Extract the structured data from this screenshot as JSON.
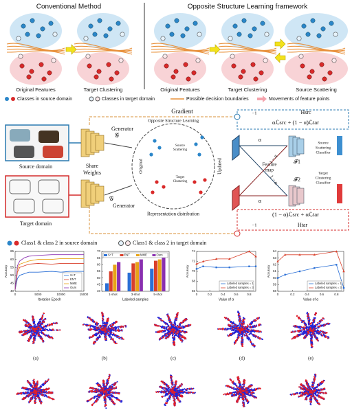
{
  "top": {
    "left_title": "Conventional  Method",
    "right_title": "Opposite Structure Learning framework",
    "labels": [
      "Original Features",
      "Target Clustering",
      "Original Features",
      "Target Clustering",
      "Source Scattering"
    ],
    "legend": [
      "Classes in source domain",
      "Classes in target domain",
      "Possible decision boundaries",
      "Movements of feature points"
    ]
  },
  "diagram": {
    "gradient_top": "Gradient",
    "source_domain": "Source domain",
    "target_domain": "Target domain",
    "share_weights": [
      "Share",
      "Weights"
    ],
    "generator_top": "Generator",
    "generator_bottom": "Generator",
    "g_symbol_top": "𝒢",
    "g_symbol_bottom": "𝒢",
    "osl_title": "Opposite Structure Learning",
    "original": "Original",
    "source_scattering": [
      "Source",
      "Scattering"
    ],
    "target_clustering": [
      "Target",
      "Clustering"
    ],
    "updated": "Updated",
    "representation": "Representation distribution",
    "feature_map": [
      "Feature",
      "map"
    ],
    "alpha_top": "α",
    "alpha_bottom": "α",
    "one_minus_alpha_top": "1 − α",
    "one_minus_alpha_bottom": "1 − α",
    "f1": "𝓕1",
    "f2": "𝓕2",
    "src_classifier": [
      "Source",
      "Scattering",
      "Classifier"
    ],
    "tar_classifier": [
      "Target",
      "Clustering",
      "Classifier"
    ],
    "h_src": "Hsrc",
    "formula_src": "αℒsrc + (1 − α)ℒtar",
    "minus_one_top": "−1",
    "h_tar": "Htar",
    "formula_tar": "(1 − α)ℒsrc + αℒtar",
    "minus_one_bottom": "−1",
    "legend": [
      "Class1 & class 2 in source domain",
      "Class1 & class 2 in target domain"
    ]
  },
  "charts": [
    {
      "type": "line",
      "xlabel": "Iteration Epoch",
      "ylabel": "Accuracy",
      "xlim": [
        0,
        15000
      ],
      "ylim": [
        40,
        65
      ],
      "xticks": [
        0,
        5000,
        10000,
        15000
      ],
      "yticks": [
        40,
        45,
        50,
        55,
        60,
        65
      ],
      "x": [
        0,
        500,
        1000,
        2000,
        3000,
        5000,
        8000,
        10000,
        12000,
        15000
      ],
      "legend": "lower right",
      "series": [
        {
          "name": "S+T",
          "color": "#2a6fd6",
          "values": [
            41,
            48,
            50,
            51,
            52,
            52,
            52.5,
            52,
            52.5,
            52.5
          ]
        },
        {
          "name": "ENT",
          "color": "#d9402b",
          "values": [
            41,
            52,
            55,
            56,
            57,
            57.5,
            57,
            57.5,
            57.5,
            57.5
          ]
        },
        {
          "name": "MME",
          "color": "#e8a317",
          "values": [
            41,
            54,
            57,
            58,
            59,
            60,
            60,
            60.5,
            60.5,
            60.5
          ]
        },
        {
          "name": "Ours",
          "color": "#8a2fb0",
          "values": [
            41,
            56,
            59,
            61,
            62,
            62.5,
            63,
            63,
            63,
            63
          ]
        }
      ]
    },
    {
      "type": "bar",
      "xlabel": "Labeled samples",
      "ylim": [
        40,
        70
      ],
      "yticks": [
        40,
        45,
        50,
        55,
        60,
        65,
        70
      ],
      "categories": [
        "1-shot",
        "3-shot",
        "5-shot"
      ],
      "legend": "top",
      "series": [
        {
          "name": "S+T",
          "color": "#2a6fd6",
          "values": [
            46,
            54,
            57
          ]
        },
        {
          "name": "ENT",
          "color": "#d9402b",
          "values": [
            55,
            61,
            63
          ]
        },
        {
          "name": "MME",
          "color": "#e8a317",
          "values": [
            60,
            62,
            64
          ]
        },
        {
          "name": "Ours",
          "color": "#8a2fb0",
          "values": [
            62,
            64,
            66
          ]
        }
      ]
    },
    {
      "type": "line",
      "xlabel": "Value of α",
      "ylabel": "Accuracy",
      "xlim": [
        0,
        0.9
      ],
      "ylim": [
        66,
        74
      ],
      "xticks": [
        0,
        0.2,
        0.4,
        0.6,
        0.8
      ],
      "yticks": [
        66,
        68,
        70,
        72,
        74
      ],
      "x": [
        0,
        0.1,
        0.3,
        0.5,
        0.8,
        0.9
      ],
      "legend": "lower right",
      "series": [
        {
          "name": "Labeled samples = 1",
          "color": "#2a6fd6",
          "values": [
            70.5,
            71,
            70.8,
            70.8,
            71,
            71
          ]
        },
        {
          "name": "Labeled samples = 3",
          "color": "#d9402b",
          "values": [
            71.5,
            72,
            72.5,
            72.5,
            74,
            73
          ]
        }
      ]
    },
    {
      "type": "line",
      "xlabel": "Value of α",
      "ylabel": "Accuracy",
      "xlim": [
        0,
        0.9
      ],
      "ylim": [
        58,
        64
      ],
      "xticks": [
        0,
        0.2,
        0.4,
        0.6,
        0.8
      ],
      "yticks": [
        58,
        59,
        60,
        61,
        62,
        63,
        64
      ],
      "x": [
        0,
        0.1,
        0.3,
        0.5,
        0.8,
        0.9
      ],
      "legend": "lower right",
      "series": [
        {
          "name": "Labeled samples = 1",
          "color": "#2a6fd6",
          "values": [
            60,
            60.5,
            61,
            61.5,
            62,
            58.5
          ]
        },
        {
          "name": "Labeled samples = 3",
          "color": "#d9402b",
          "values": [
            62.5,
            63.5,
            63.5,
            63.5,
            64,
            61
          ]
        }
      ]
    }
  ],
  "tsne": {
    "labels": [
      "(a)",
      "(b)",
      "(c)",
      "(d)",
      "(e)"
    ]
  }
}
